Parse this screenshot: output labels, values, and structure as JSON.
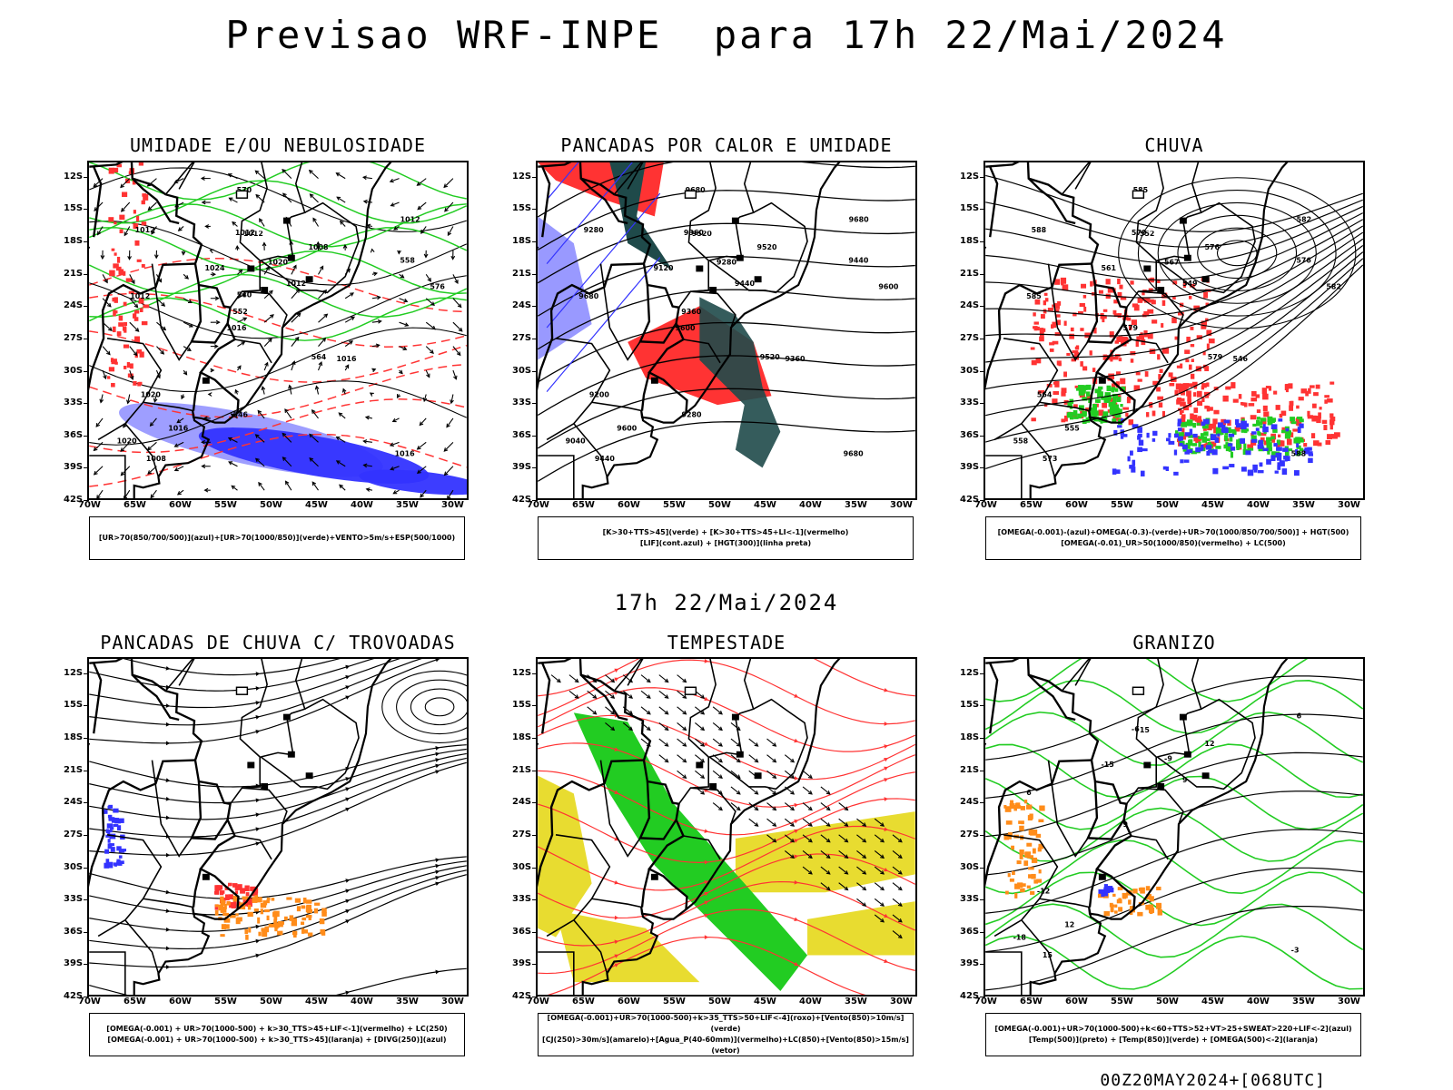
{
  "title": "Previsao WRF-INPE  para 17h 22/Mai/2024",
  "mid_title": "17h 22/Mai/2024",
  "footer": "00Z20MAY2024+[068UTC]",
  "y_axis": [
    "12S",
    "15S",
    "18S",
    "21S",
    "24S",
    "27S",
    "30S",
    "33S",
    "36S",
    "39S",
    "42S"
  ],
  "x_axis": [
    "70W",
    "65W",
    "60W",
    "55W",
    "50W",
    "45W",
    "40W",
    "35W",
    "30W"
  ],
  "panels": [
    {
      "title": "UMIDADE E/OU NEBULOSIDADE",
      "legend": [
        "[UR>70(850/700/500)](azul)+[UR>70(1000/850)](verde)+VENTO>5m/s+ESP(500/1000)"
      ],
      "labels": [
        "1016",
        "1012",
        "1012",
        "1016",
        "1008",
        "1008",
        "1012",
        "1020",
        "1020",
        "1024",
        "1020",
        "1016",
        "1012",
        "1012",
        "1016",
        "1012",
        "570",
        "576",
        "564",
        "558",
        "552",
        "546",
        "540"
      ]
    },
    {
      "title": "PANCADAS POR CALOR E UMIDADE",
      "legend": [
        "[K>30+TTS>45](verde) + [K>30+TTS>45+LI<-1](vermelho)",
        "[LIF](cont.azul) + [HGT(300)](linha preta)"
      ],
      "labels": [
        "9680",
        "9680",
        "9680",
        "9600",
        "9520",
        "9440",
        "9360",
        "9280",
        "9200",
        "9120",
        "9040",
        "9600",
        "9520",
        "9440",
        "9360",
        "9280",
        "9680",
        "9600",
        "9520",
        "9440",
        "9360",
        "9280"
      ]
    },
    {
      "title": "CHUVA",
      "legend": [
        "[OMEGA(-0.001)-(azul)+OMEGA(-0.3)-(verde)+UR>70(1000/850/700/500)] + HGT(500)",
        "[OMEGA(-0.01)_UR>50(1000/850)(vermelho) + LC(500)"
      ],
      "labels": [
        "588",
        "585",
        "582",
        "579",
        "576",
        "573",
        "570",
        "567",
        "564",
        "561",
        "558",
        "555",
        "552",
        "549",
        "546",
        "588",
        "585",
        "582",
        "579",
        "576"
      ]
    },
    {
      "title": "PANCADAS DE CHUVA C/ TROVOADAS",
      "legend": [
        "[OMEGA(-0.001) + UR>70(1000-500) + k>30_TTS>45+LIF<-1](vermelho) + LC(250)",
        "[OMEGA(-0.001) + UR>70(1000-500) + k>30_TTS>45](laranja) + [DIVG(250)](azul)"
      ],
      "labels": []
    },
    {
      "title": "TEMPESTADE",
      "legend": [
        "[OMEGA(-0.001)+UR>70(1000-500)+k>35_TTS>50+LIF<-4](roxo)+[Vento(850)>10m/s](verde)",
        "[CJ(250)>30m/s](amarelo)+[Agua_P(40-60mm)](vermelho)+LC(850)+[Vento(850)>15m/s](vetor)"
      ],
      "labels": []
    },
    {
      "title": "GRANIZO",
      "legend": [
        "[OMEGA(-0.001)+UR>70(1000-500)+k<60+TTS>52+VT>25+SWEAT>220+LIF<-2](azul)",
        "[Temp(500)](preto) + [Temp(850)](verde) + [OMEGA(500)<-2](laranja)"
      ],
      "labels": [
        "-3",
        "6",
        "6",
        "9",
        "12",
        "15",
        "-6",
        "-9",
        "-12",
        "-15",
        "-18",
        "12",
        "15",
        "9"
      ]
    }
  ],
  "colors": {
    "blue": "#3333ff",
    "green": "#22cc22",
    "red": "#ff3333",
    "orange": "#ff8c1a",
    "yellow": "#e8dc30",
    "purple": "#9999ff",
    "teal": "#1f4a4a",
    "salmon": "#ff5544"
  }
}
